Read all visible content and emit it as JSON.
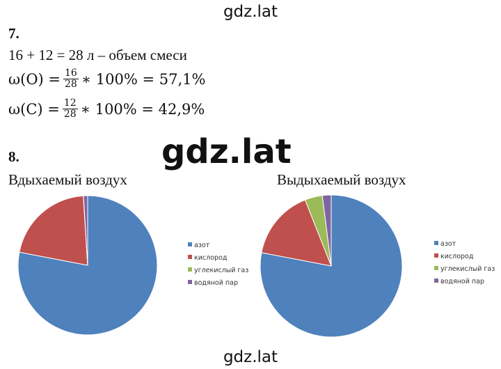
{
  "watermark_top": "gdz.lat",
  "watermark_center": "gdz.lat",
  "watermark_bottom": "gdz.lat",
  "task7": {
    "number": "7.",
    "line1": "16 + 12 = 28 л – объем смеси",
    "formula1": {
      "lhs": "ω(O) = ",
      "num": "16",
      "den": "28",
      "rhs": "∗ 100% = 57,1%"
    },
    "formula2": {
      "lhs": "ω(C) = ",
      "num": "12",
      "den": "28",
      "rhs": "∗ 100% = 42,9%"
    }
  },
  "task8": {
    "number": "8."
  },
  "colors": {
    "azot": "#4F81BD",
    "kislorod": "#C0504D",
    "uglekisly_gaz": "#9BBB59",
    "vodyanoy_par": "#8064A2"
  },
  "chart_data": [
    {
      "type": "pie",
      "title": "Вдыхаемый воздух",
      "legend_position": "right",
      "categories": [
        "азот",
        "кислород",
        "углекислый газ",
        "водяной пар"
      ],
      "values": [
        78,
        21,
        0.03,
        0.97
      ]
    },
    {
      "type": "pie",
      "title": "Выдыхаемый воздух",
      "legend_position": "right",
      "categories": [
        "азот",
        "кислород",
        "углекислый газ",
        "водяной пар"
      ],
      "values": [
        78,
        16,
        4,
        2
      ]
    }
  ]
}
